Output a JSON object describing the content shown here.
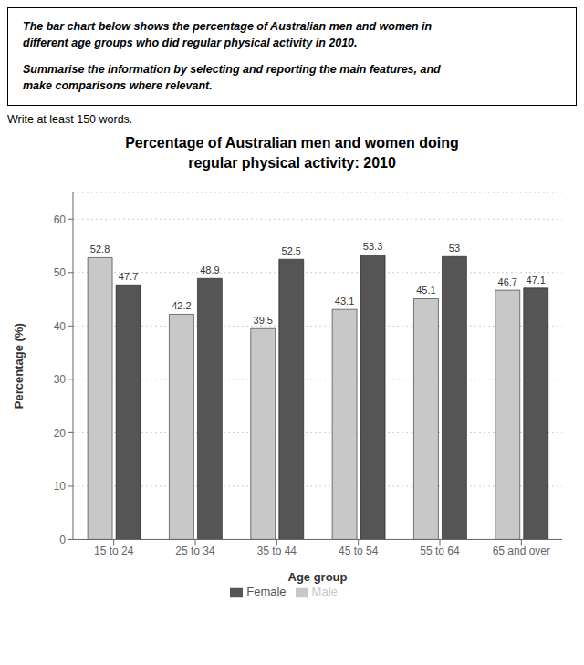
{
  "chart_data": {
    "type": "bar",
    "title": "Percentage of Australian men and women doing\nregular physical activity: 2010",
    "annotations": [
      "The bar chart below shows the percentage of Australian men and women in\ndifferent age groups who did regular physical activity in 2010.",
      "Summarise the information by selecting and reporting the main features, and\nmake comparisons where relevant.",
      "Write at least 150 words."
    ],
    "categories": [
      "15 to 24",
      "25 to 34",
      "35 to 44",
      "45 to 54",
      "55 to 64",
      "65 and over"
    ],
    "series": [
      {
        "name": "Male",
        "color": "#c8c8c8",
        "values": [
          52.8,
          42.2,
          39.5,
          43.1,
          45.1,
          46.7
        ]
      },
      {
        "name": "Female",
        "color": "#555555",
        "values": [
          47.7,
          48.9,
          52.5,
          53.3,
          53.0,
          47.1
        ]
      }
    ],
    "xlabel": "Age group",
    "ylabel": "Percentage (%)",
    "ylim": [
      0,
      65
    ],
    "yticks": [
      0,
      10,
      20,
      30,
      40,
      50,
      60
    ],
    "grid": true,
    "legend": "bottom",
    "data_labels": true
  }
}
